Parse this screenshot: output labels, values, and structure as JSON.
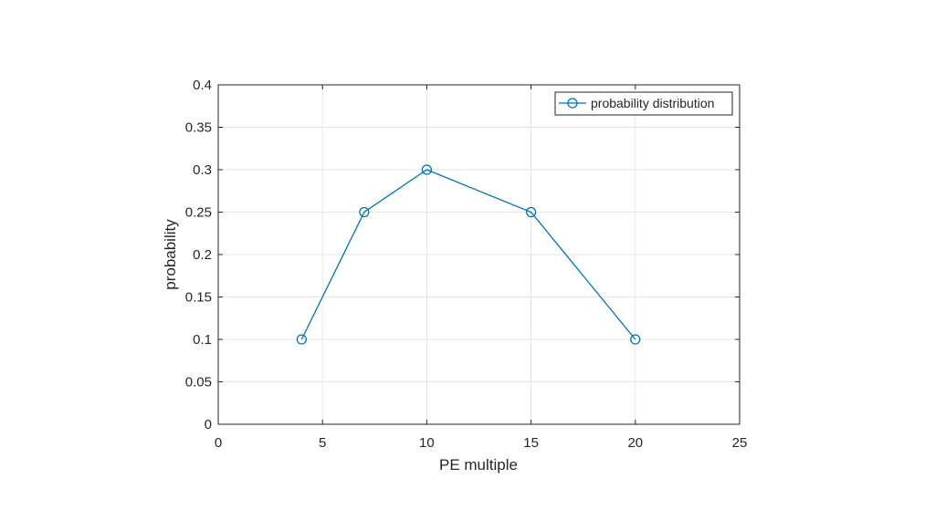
{
  "chart_data": {
    "type": "line",
    "title": "",
    "xlabel": "PE multiple",
    "ylabel": "probability",
    "x": [
      4,
      7,
      10,
      15,
      20
    ],
    "series": [
      {
        "name": "probability distribution",
        "values": [
          0.1,
          0.25,
          0.3,
          0.25,
          0.1
        ],
        "color": "#0072bd",
        "marker": "circle"
      }
    ],
    "xlim": [
      0,
      25
    ],
    "ylim": [
      0,
      0.4
    ],
    "xticks": [
      "0",
      "5",
      "10",
      "15",
      "20",
      "25"
    ],
    "yticks": [
      "0",
      "0.05",
      "0.1",
      "0.15",
      "0.2",
      "0.25",
      "0.3",
      "0.35",
      "0.4"
    ],
    "grid": true,
    "legend_position": "top-right"
  }
}
